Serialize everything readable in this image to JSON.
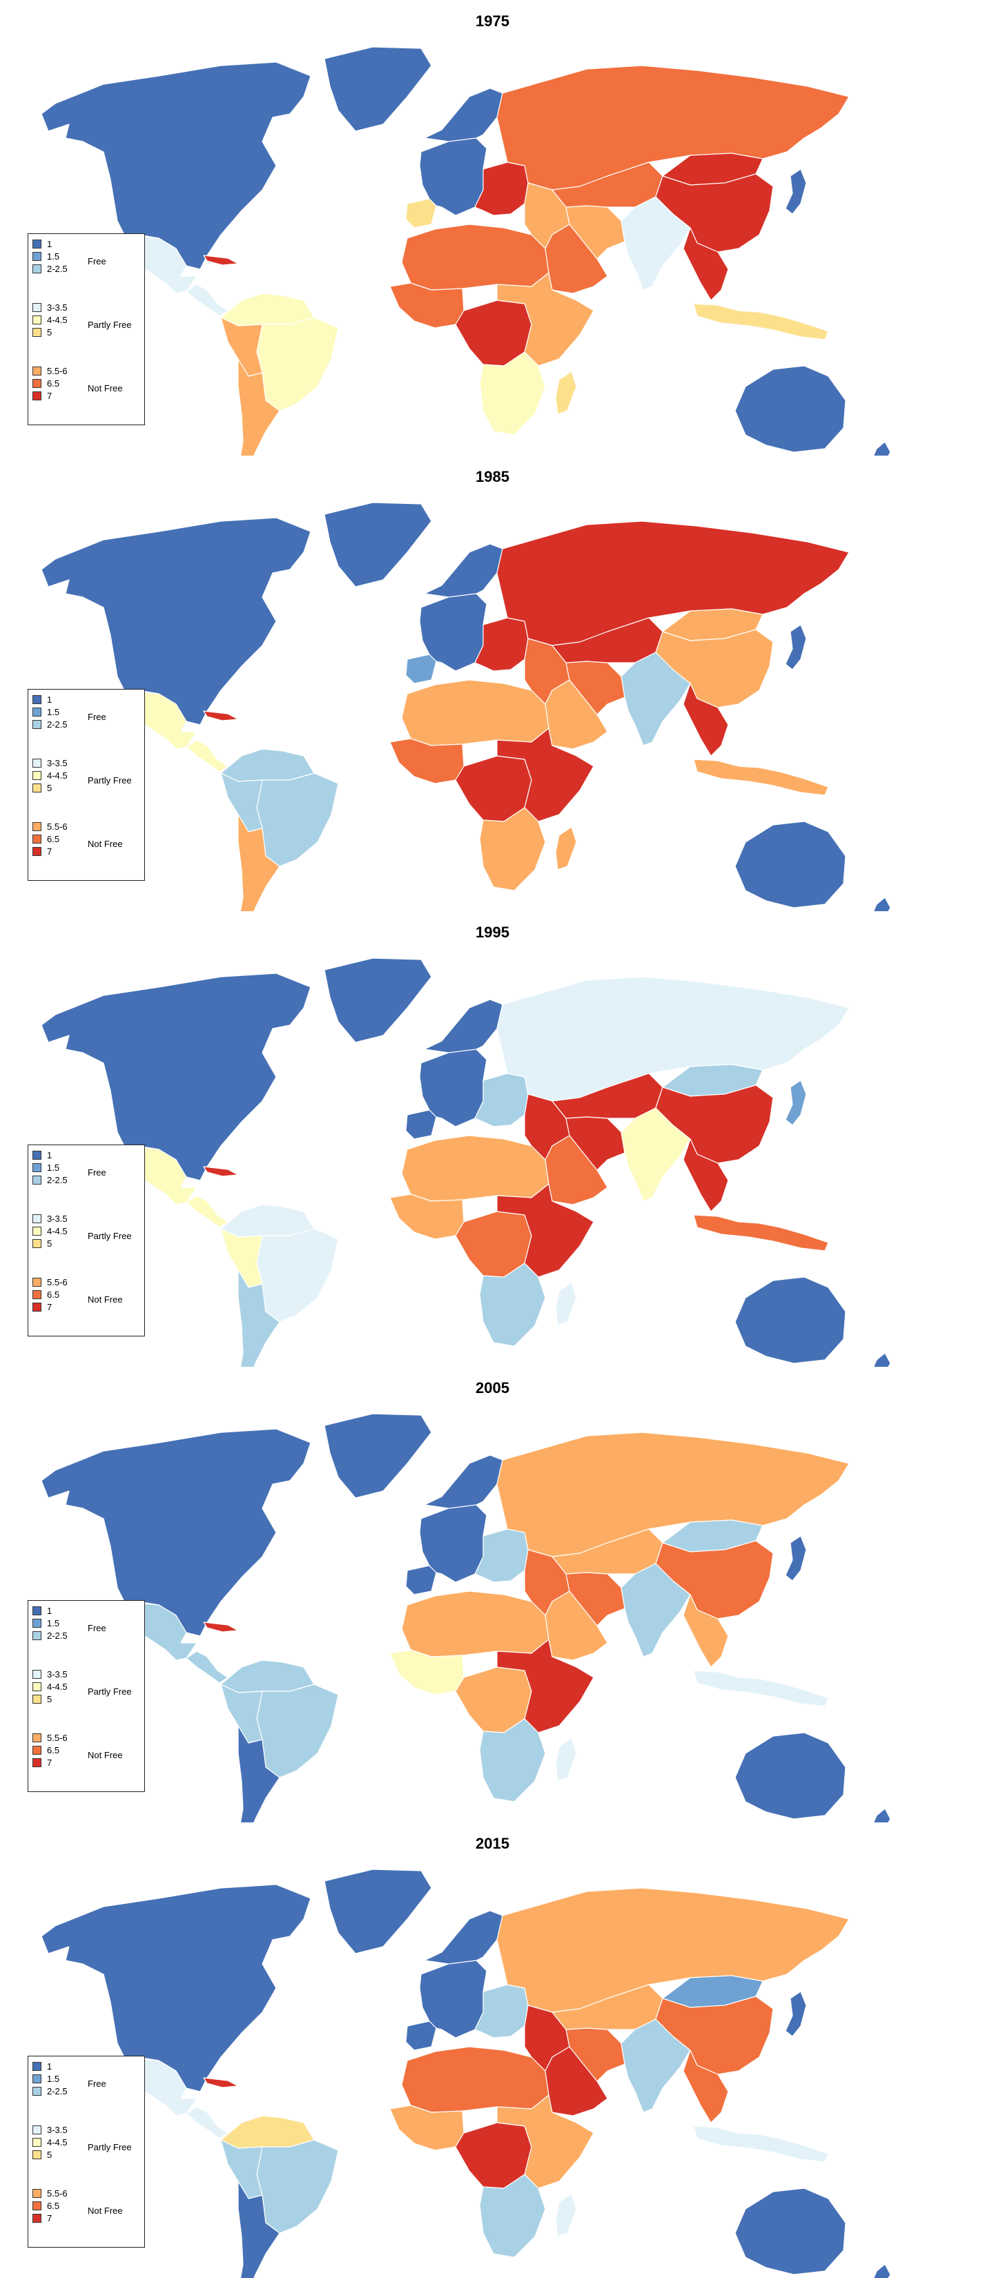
{
  "colors": {
    "c1": "#4570b5",
    "c1_5": "#6fa2d2",
    "c2": "#a9d1e5",
    "c3": "#e2f2f8",
    "c4": "#fdfbbe",
    "c5": "#fde08c",
    "c55": "#fcad63",
    "c65": "#f1703d",
    "c7": "#d73027",
    "gray": "#999999",
    "ocean": "#ffffff"
  },
  "legend": {
    "items": [
      "1",
      "1.5",
      "2-2.5",
      "3-3.5",
      "4-4.5",
      "5",
      "5.5-6",
      "6.5",
      "7"
    ],
    "groups": [
      "Free",
      "Partly Free",
      "Not Free"
    ]
  },
  "panels": [
    {
      "year": "1975",
      "regions": {
        "north_america": "c1",
        "greenland": "c1",
        "mexico": "c3",
        "central_america": "c3",
        "cuba": "c7",
        "south_america_north": "c4",
        "brazil": "c4",
        "andes": "c55",
        "southern_cone": "c55",
        "western_europe": "c1",
        "iberia": "c5",
        "eastern_europe": "c7",
        "russia": "c65",
        "north_africa": "c65",
        "west_africa": "c65",
        "central_africa": "c7",
        "east_africa": "c55",
        "southern_africa": "c4",
        "madagascar": "c5",
        "middle_east": "c55",
        "arabia": "c65",
        "central_asia": "c65",
        "iran": "c55",
        "south_asia": "c3",
        "china": "c7",
        "mongolia": "c7",
        "southeast_asia": "c7",
        "indonesia": "c5",
        "japan": "c1",
        "australia": "c1",
        "new_zealand": "c1"
      }
    },
    {
      "year": "1985",
      "regions": {
        "north_america": "c1",
        "greenland": "c1",
        "mexico": "c4",
        "central_america": "c4",
        "cuba": "c7",
        "south_america_north": "c2",
        "brazil": "c2",
        "andes": "c2",
        "southern_cone": "c55",
        "western_europe": "c1",
        "iberia": "c1_5",
        "eastern_europe": "c7",
        "russia": "c7",
        "north_africa": "c55",
        "west_africa": "c65",
        "central_africa": "c7",
        "east_africa": "c7",
        "southern_africa": "c55",
        "madagascar": "c55",
        "middle_east": "c65",
        "arabia": "c55",
        "central_asia": "c7",
        "iran": "c65",
        "south_asia": "c2",
        "china": "c55",
        "mongolia": "c55",
        "southeast_asia": "c7",
        "indonesia": "c55",
        "japan": "c1",
        "australia": "c1",
        "new_zealand": "c1"
      }
    },
    {
      "year": "1995",
      "regions": {
        "north_america": "c1",
        "greenland": "c1",
        "mexico": "c4",
        "central_america": "c4",
        "cuba": "c7",
        "south_america_north": "c3",
        "brazil": "c3",
        "andes": "c4",
        "southern_cone": "c2",
        "western_europe": "c1",
        "iberia": "c1",
        "eastern_europe": "c2",
        "russia": "c3",
        "north_africa": "c55",
        "west_africa": "c55",
        "central_africa": "c65",
        "east_africa": "c7",
        "southern_africa": "c2",
        "madagascar": "c3",
        "middle_east": "c7",
        "arabia": "c65",
        "central_asia": "c7",
        "iran": "c7",
        "south_asia": "c4",
        "china": "c7",
        "mongolia": "c2",
        "southeast_asia": "c7",
        "indonesia": "c65",
        "japan": "c1_5",
        "australia": "c1",
        "new_zealand": "c1"
      }
    },
    {
      "year": "2005",
      "regions": {
        "north_america": "c1",
        "greenland": "c1",
        "mexico": "c2",
        "central_america": "c2",
        "cuba": "c7",
        "south_america_north": "c2",
        "brazil": "c2",
        "andes": "c2",
        "southern_cone": "c1",
        "western_europe": "c1",
        "iberia": "c1",
        "eastern_europe": "c2",
        "russia": "c55",
        "north_africa": "c55",
        "west_africa": "c4",
        "central_africa": "c55",
        "east_africa": "c7",
        "southern_africa": "c2",
        "madagascar": "c3",
        "middle_east": "c65",
        "arabia": "c55",
        "central_asia": "c55",
        "iran": "c65",
        "south_asia": "c2",
        "china": "c65",
        "mongolia": "c2",
        "southeast_asia": "c55",
        "indonesia": "c3",
        "japan": "c1",
        "australia": "c1",
        "new_zealand": "c1"
      }
    },
    {
      "year": "2015",
      "regions": {
        "north_america": "c1",
        "greenland": "c1",
        "mexico": "c3",
        "central_america": "c3",
        "cuba": "c7",
        "south_america_north": "c5",
        "brazil": "c2",
        "andes": "c2",
        "southern_cone": "c1",
        "western_europe": "c1",
        "iberia": "c1",
        "eastern_europe": "c2",
        "russia": "c55",
        "north_africa": "c65",
        "west_africa": "c55",
        "central_africa": "c7",
        "east_africa": "c55",
        "southern_africa": "c2",
        "madagascar": "c3",
        "middle_east": "c7",
        "arabia": "c7",
        "central_asia": "c55",
        "iran": "c65",
        "south_asia": "c2",
        "china": "c65",
        "mongolia": "c1_5",
        "southeast_asia": "c65",
        "indonesia": "c3",
        "japan": "c1",
        "australia": "c1",
        "new_zealand": "c1"
      }
    }
  ]
}
